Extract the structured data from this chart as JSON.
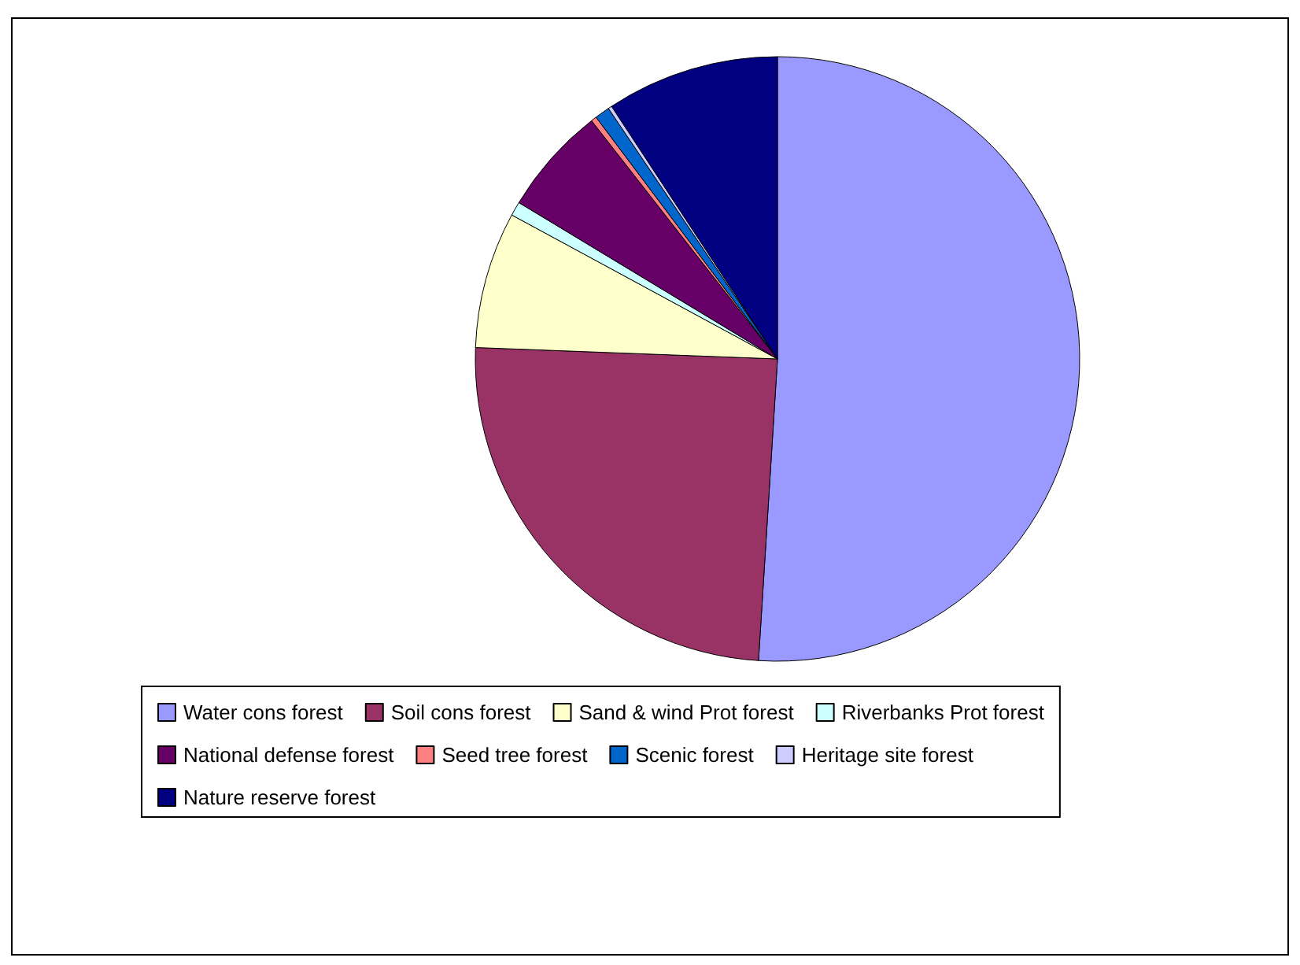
{
  "chart_data": {
    "type": "pie",
    "categories": [
      "Water cons forest",
      "Soil cons forest",
      "Sand & wind Prot forest",
      "Riverbanks Prot forest",
      "National defense forest",
      "Seed tree forest",
      "Scenic forest",
      "Heritage site forest",
      "Nature reserve forest"
    ],
    "values": [
      51.0,
      24.6,
      7.3,
      0.75,
      5.8,
      0.3,
      0.8,
      0.2,
      9.25
    ],
    "colors": [
      "#9999ff",
      "#993366",
      "#ffffcc",
      "#ccffff",
      "#660066",
      "#ff8080",
      "#0066cc",
      "#ccccff",
      "#000080"
    ],
    "legend": "bottom"
  }
}
